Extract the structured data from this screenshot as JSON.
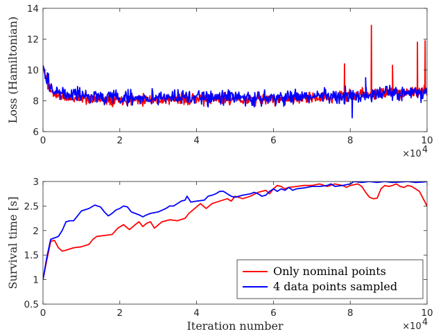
{
  "chart_data": [
    {
      "type": "line",
      "title": "",
      "xlabel": "",
      "ylabel": "Loss (Hamiltonian)",
      "xlim": [
        0,
        100000
      ],
      "ylim": [
        6,
        14
      ],
      "xticks": [
        0,
        20000,
        40000,
        60000,
        80000,
        100000
      ],
      "xtick_labels": [
        "0",
        "2",
        "4",
        "6",
        "8",
        "10"
      ],
      "yticks": [
        6,
        8,
        10,
        12,
        14
      ],
      "ytick_labels": [
        "6",
        "8",
        "10",
        "12",
        "14"
      ],
      "x_multiplier_text": "×10",
      "x_multiplier_exp": "4",
      "grid": false,
      "legend": null,
      "series": [
        {
          "name": "Only nominal points",
          "color": "#ff0000",
          "noise": 0.22,
          "seed": 11,
          "points": [
            [
              0,
              10.2
            ],
            [
              1000,
              9.2
            ],
            [
              2500,
              8.5
            ],
            [
              6000,
              8.2
            ],
            [
              20000,
              8.1
            ],
            [
              40000,
              8.1
            ],
            [
              60000,
              8.1
            ],
            [
              75000,
              8.2
            ],
            [
              80000,
              8.4
            ],
            [
              90000,
              8.5
            ],
            [
              100000,
              8.6
            ]
          ],
          "spikes": [
            [
              78500,
              10.4
            ],
            [
              85500,
              12.9
            ],
            [
              91000,
              10.3
            ],
            [
              97500,
              11.8
            ],
            [
              99500,
              11.9
            ]
          ]
        },
        {
          "name": "4 data points sampled",
          "color": "#0000ff",
          "noise": 0.3,
          "seed": 29,
          "points": [
            [
              0,
              10.3
            ],
            [
              1000,
              9.5
            ],
            [
              2500,
              8.7
            ],
            [
              6000,
              8.4
            ],
            [
              20000,
              8.2
            ],
            [
              40000,
              8.2
            ],
            [
              60000,
              8.2
            ],
            [
              75000,
              8.3
            ],
            [
              80000,
              8.3
            ],
            [
              90000,
              8.5
            ],
            [
              100000,
              8.5
            ]
          ],
          "spikes": [
            [
              80500,
              6.9
            ],
            [
              84000,
              9.5
            ]
          ]
        }
      ]
    },
    {
      "type": "line",
      "title": "",
      "xlabel": "Iteration number",
      "ylabel": "Survival time [s]",
      "xlim": [
        0,
        100000
      ],
      "ylim": [
        0.5,
        3
      ],
      "xticks": [
        0,
        20000,
        40000,
        60000,
        80000,
        100000
      ],
      "xtick_labels": [
        "0",
        "2",
        "4",
        "6",
        "8",
        "10"
      ],
      "yticks": [
        0.5,
        1,
        1.5,
        2,
        2.5,
        3
      ],
      "ytick_labels": [
        "0.5",
        "1",
        "1.5",
        "2",
        "2.5",
        "3"
      ],
      "x_multiplier_text": "×10",
      "x_multiplier_exp": "4",
      "grid": false,
      "legend": "bottom-right",
      "series": [
        {
          "name": "Only nominal points",
          "color": "#ff0000",
          "points": [
            [
              0,
              1.0
            ],
            [
              1000,
              1.4
            ],
            [
              2000,
              1.78
            ],
            [
              3000,
              1.8
            ],
            [
              4000,
              1.65
            ],
            [
              5000,
              1.58
            ],
            [
              6000,
              1.6
            ],
            [
              8000,
              1.65
            ],
            [
              10000,
              1.67
            ],
            [
              12000,
              1.72
            ],
            [
              13000,
              1.82
            ],
            [
              14000,
              1.88
            ],
            [
              16000,
              1.9
            ],
            [
              18000,
              1.92
            ],
            [
              19500,
              2.05
            ],
            [
              21000,
              2.12
            ],
            [
              22500,
              2.02
            ],
            [
              24000,
              2.12
            ],
            [
              25000,
              2.18
            ],
            [
              26000,
              2.08
            ],
            [
              27000,
              2.15
            ],
            [
              28000,
              2.18
            ],
            [
              29000,
              2.05
            ],
            [
              31000,
              2.18
            ],
            [
              33000,
              2.22
            ],
            [
              35000,
              2.2
            ],
            [
              37000,
              2.25
            ],
            [
              38000,
              2.35
            ],
            [
              39500,
              2.45
            ],
            [
              41000,
              2.55
            ],
            [
              42500,
              2.45
            ],
            [
              44000,
              2.55
            ],
            [
              46000,
              2.6
            ],
            [
              48000,
              2.65
            ],
            [
              49000,
              2.6
            ],
            [
              50000,
              2.7
            ],
            [
              52000,
              2.65
            ],
            [
              54000,
              2.7
            ],
            [
              56000,
              2.78
            ],
            [
              58000,
              2.82
            ],
            [
              59000,
              2.75
            ],
            [
              60000,
              2.85
            ],
            [
              61000,
              2.92
            ],
            [
              62000,
              2.9
            ],
            [
              63000,
              2.85
            ],
            [
              64000,
              2.88
            ],
            [
              66000,
              2.9
            ],
            [
              68000,
              2.92
            ],
            [
              70000,
              2.92
            ],
            [
              72000,
              2.95
            ],
            [
              74000,
              2.9
            ],
            [
              76000,
              2.95
            ],
            [
              78000,
              2.92
            ],
            [
              79000,
              2.88
            ],
            [
              80000,
              2.92
            ],
            [
              82000,
              2.95
            ],
            [
              83000,
              2.9
            ],
            [
              84000,
              2.78
            ],
            [
              85000,
              2.68
            ],
            [
              86000,
              2.65
            ],
            [
              87000,
              2.66
            ],
            [
              88000,
              2.85
            ],
            [
              89000,
              2.92
            ],
            [
              90000,
              2.9
            ],
            [
              91000,
              2.92
            ],
            [
              92000,
              2.95
            ],
            [
              93000,
              2.9
            ],
            [
              94000,
              2.88
            ],
            [
              95000,
              2.92
            ],
            [
              96000,
              2.9
            ],
            [
              97000,
              2.85
            ],
            [
              98000,
              2.8
            ],
            [
              99000,
              2.65
            ],
            [
              100000,
              2.5
            ]
          ]
        },
        {
          "name": "4 data points sampled",
          "color": "#0000ff",
          "points": [
            [
              0,
              1.0
            ],
            [
              1000,
              1.45
            ],
            [
              2000,
              1.82
            ],
            [
              3000,
              1.85
            ],
            [
              4000,
              1.88
            ],
            [
              5000,
              2.0
            ],
            [
              6000,
              2.18
            ],
            [
              7000,
              2.2
            ],
            [
              8000,
              2.2
            ],
            [
              9000,
              2.3
            ],
            [
              10000,
              2.4
            ],
            [
              12000,
              2.45
            ],
            [
              13500,
              2.52
            ],
            [
              15000,
              2.48
            ],
            [
              16000,
              2.38
            ],
            [
              17000,
              2.3
            ],
            [
              18000,
              2.35
            ],
            [
              19000,
              2.42
            ],
            [
              20000,
              2.45
            ],
            [
              21000,
              2.5
            ],
            [
              22000,
              2.48
            ],
            [
              23000,
              2.38
            ],
            [
              24000,
              2.35
            ],
            [
              25000,
              2.32
            ],
            [
              26000,
              2.28
            ],
            [
              27000,
              2.32
            ],
            [
              28000,
              2.35
            ],
            [
              30000,
              2.38
            ],
            [
              32000,
              2.45
            ],
            [
              33000,
              2.5
            ],
            [
              34000,
              2.5
            ],
            [
              35000,
              2.55
            ],
            [
              36000,
              2.6
            ],
            [
              37000,
              2.62
            ],
            [
              37500,
              2.7
            ],
            [
              38500,
              2.58
            ],
            [
              40000,
              2.6
            ],
            [
              42000,
              2.62
            ],
            [
              43000,
              2.7
            ],
            [
              44000,
              2.72
            ],
            [
              45000,
              2.75
            ],
            [
              46000,
              2.8
            ],
            [
              47000,
              2.8
            ],
            [
              48000,
              2.75
            ],
            [
              49000,
              2.7
            ],
            [
              50000,
              2.68
            ],
            [
              52000,
              2.72
            ],
            [
              54000,
              2.75
            ],
            [
              55000,
              2.78
            ],
            [
              56000,
              2.75
            ],
            [
              57000,
              2.7
            ],
            [
              58000,
              2.72
            ],
            [
              59000,
              2.8
            ],
            [
              60000,
              2.85
            ],
            [
              61000,
              2.8
            ],
            [
              62000,
              2.85
            ],
            [
              63000,
              2.82
            ],
            [
              64000,
              2.88
            ],
            [
              65000,
              2.82
            ],
            [
              66000,
              2.85
            ],
            [
              68000,
              2.87
            ],
            [
              70000,
              2.9
            ],
            [
              72000,
              2.9
            ],
            [
              74000,
              2.92
            ],
            [
              75000,
              2.95
            ],
            [
              76000,
              2.9
            ],
            [
              78000,
              2.92
            ],
            [
              80000,
              2.95
            ],
            [
              81000,
              3.0
            ],
            [
              83000,
              2.98
            ],
            [
              85000,
              3.0
            ],
            [
              87000,
              2.98
            ],
            [
              89000,
              3.0
            ],
            [
              91000,
              2.98
            ],
            [
              93000,
              2.99
            ],
            [
              95000,
              3.0
            ],
            [
              97000,
              2.98
            ],
            [
              99000,
              2.99
            ],
            [
              100000,
              3.0
            ]
          ]
        }
      ]
    }
  ]
}
